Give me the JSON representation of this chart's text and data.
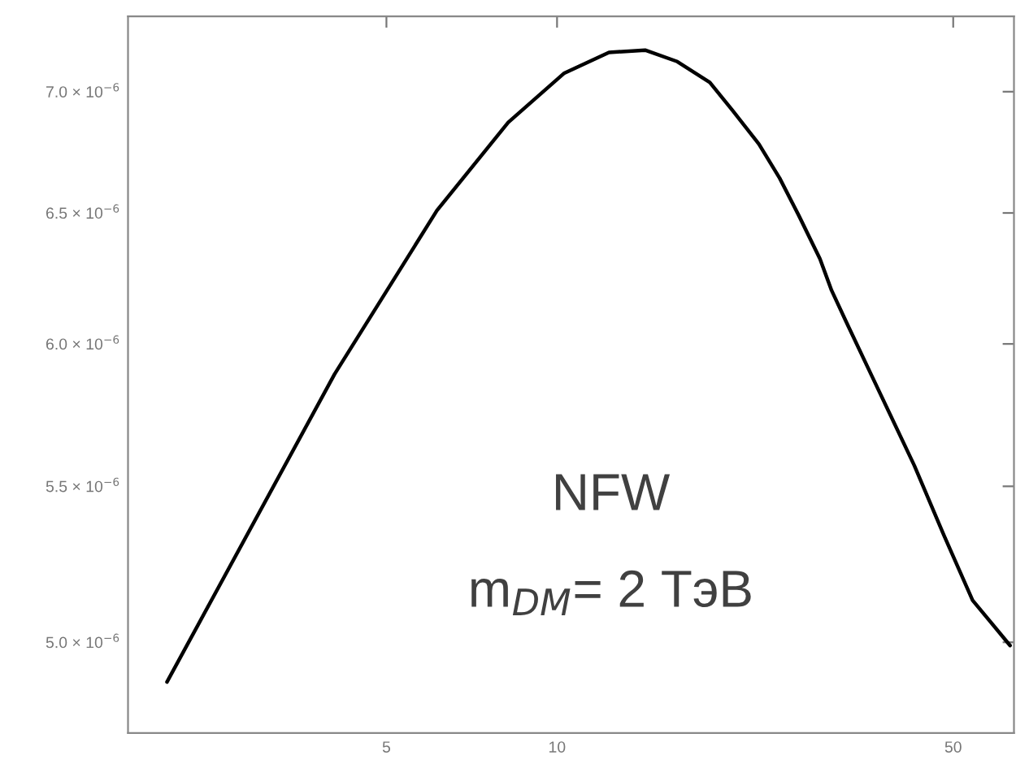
{
  "chart_data": {
    "type": "line",
    "log": "xy",
    "x": [
      2.05,
      4.05,
      6.14,
      8.2,
      10.3,
      12.35,
      14.3,
      16.3,
      18.6,
      20.4,
      22.7,
      24.7,
      26.7,
      29.1,
      30.5,
      32.4,
      36.0,
      42.7,
      48.1,
      54.1,
      63.0
    ],
    "series": [
      {
        "color": "#000000",
        "values": [
          4.88e-06,
          5.89e-06,
          6.51e-06,
          6.87e-06,
          7.08e-06,
          7.17e-06,
          7.18e-06,
          7.13e-06,
          7.04e-06,
          6.92e-06,
          6.78e-06,
          6.64e-06,
          6.49e-06,
          6.32e-06,
          6.2e-06,
          6.08e-06,
          5.88e-06,
          5.57e-06,
          5.34e-06,
          5.13e-06,
          4.99e-06
        ]
      }
    ],
    "xlim": [
      1.75,
      64
    ],
    "xticks": [
      5,
      10,
      50
    ],
    "ylim": [
      4.73e-06,
      7.33e-06
    ],
    "yticks": [
      {
        "value": 5e-06,
        "label": "5.0 × 10$^{−6}$"
      },
      {
        "value": 5.5e-06,
        "label": "5.5 × 10$^{−6}$"
      },
      {
        "value": 6e-06,
        "label": "6.0 × 10$^{−6}$"
      },
      {
        "value": 6.5e-06,
        "label": "6.5 × 10$^{−6}$"
      },
      {
        "value": 7e-06,
        "label": "7.0 × 10$^{−6}$"
      }
    ],
    "annotations": [
      "NFW",
      "m$_{DM}$= 2 ТэВ"
    ]
  }
}
